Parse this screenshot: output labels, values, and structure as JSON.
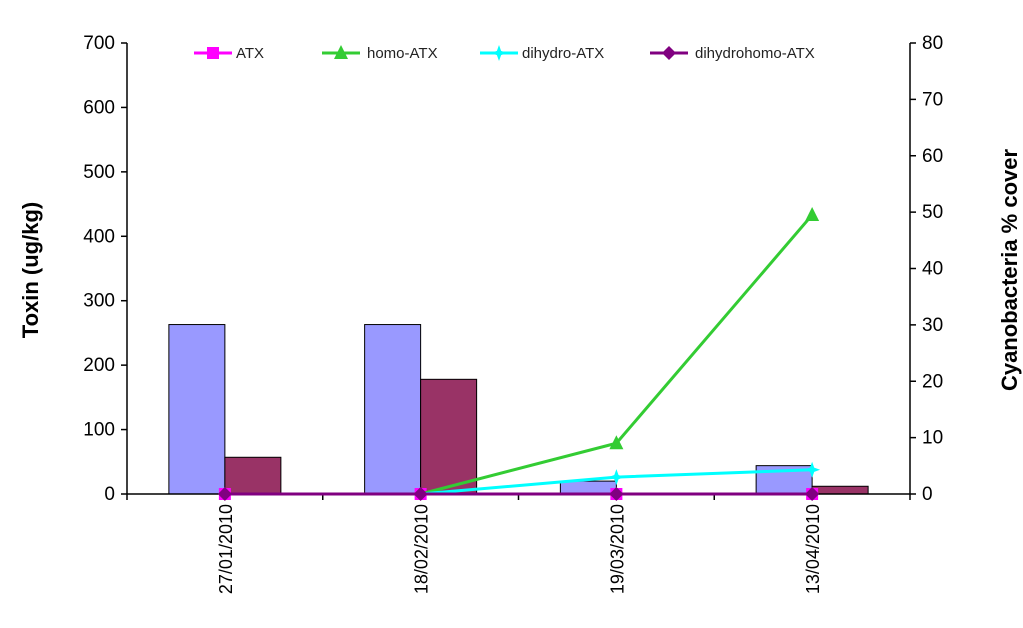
{
  "chart_data": {
    "type": "bar",
    "categories": [
      "27/01/2010",
      "18/02/2010",
      "19/03/2010",
      "13/04/2010"
    ],
    "bar_series": [
      {
        "values": [
          263,
          263,
          20,
          44
        ],
        "color": "#9999ff"
      },
      {
        "values": [
          57,
          178,
          0,
          12
        ],
        "color": "#993366"
      }
    ],
    "line_series": [
      {
        "name": "ATX",
        "color": "#ff00ff",
        "marker": "square",
        "values": [
          0,
          0,
          0,
          0
        ]
      },
      {
        "name": "homo-ATX",
        "color": "#33cc33",
        "marker": "triangle",
        "values": [
          null,
          0,
          9,
          49.5
        ]
      },
      {
        "name": "dihydro-ATX",
        "color": "#00ffff",
        "marker": "star",
        "values": [
          null,
          0,
          3,
          4.3
        ]
      },
      {
        "name": "dihydrohomo-ATX",
        "color": "#800080",
        "marker": "diamond",
        "values": [
          0,
          0,
          0,
          0
        ]
      }
    ],
    "ylabel": "Toxin (ug/kg)",
    "y2label": "Cyanobacteria % cover",
    "ylim": [
      0,
      700
    ],
    "y2lim": [
      0,
      80
    ],
    "yticks": [
      "0",
      "100",
      "200",
      "300",
      "400",
      "500",
      "600",
      "700"
    ],
    "y2ticks": [
      "0",
      "10",
      "20",
      "30",
      "40",
      "50",
      "60",
      "70",
      "80"
    ],
    "legend_position": "top-inside",
    "grid": false
  }
}
